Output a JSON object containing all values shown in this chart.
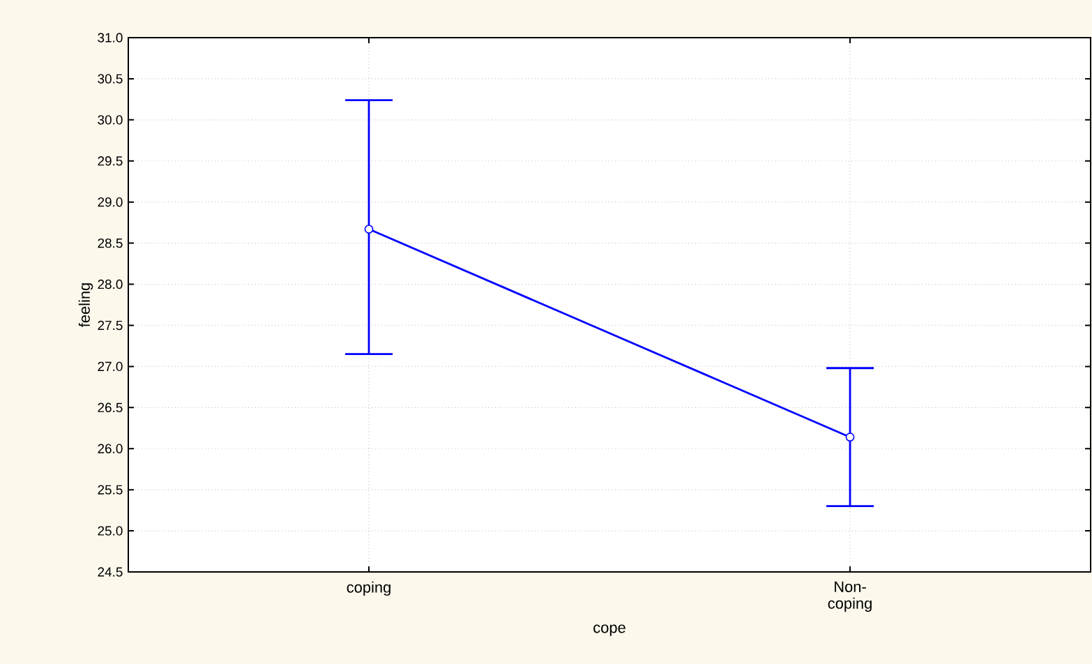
{
  "chart_data": {
    "type": "line",
    "xlabel": "cope",
    "ylabel": "feeling",
    "categories": [
      "coping",
      "Non-coping"
    ],
    "series": [
      {
        "color": "#0000ff",
        "values": [
          28.67,
          26.14
        ],
        "errors": [
          [
            27.15,
            30.24
          ],
          [
            25.3,
            26.98
          ]
        ]
      }
    ],
    "ylim": [
      24.5,
      31.0
    ],
    "yticks": [
      {
        "value": 24.5,
        "label": "24.5"
      },
      {
        "value": 25.0,
        "label": "25.0"
      },
      {
        "value": 25.5,
        "label": "25.5"
      },
      {
        "value": 26.0,
        "label": "26.0"
      },
      {
        "value": 26.5,
        "label": "26.5"
      },
      {
        "value": 27.0,
        "label": "27.0"
      },
      {
        "value": 27.5,
        "label": "27.5"
      },
      {
        "value": 28.0,
        "label": "28.0"
      },
      {
        "value": 28.5,
        "label": "28.5"
      },
      {
        "value": 29.0,
        "label": "29.0"
      },
      {
        "value": 29.5,
        "label": "29.5"
      },
      {
        "value": 30.0,
        "label": "30.0"
      },
      {
        "value": 30.5,
        "label": "30.5"
      },
      {
        "value": 31.0,
        "label": "31.0"
      }
    ],
    "grid": true,
    "marker": "circle",
    "line_style": "solid"
  }
}
